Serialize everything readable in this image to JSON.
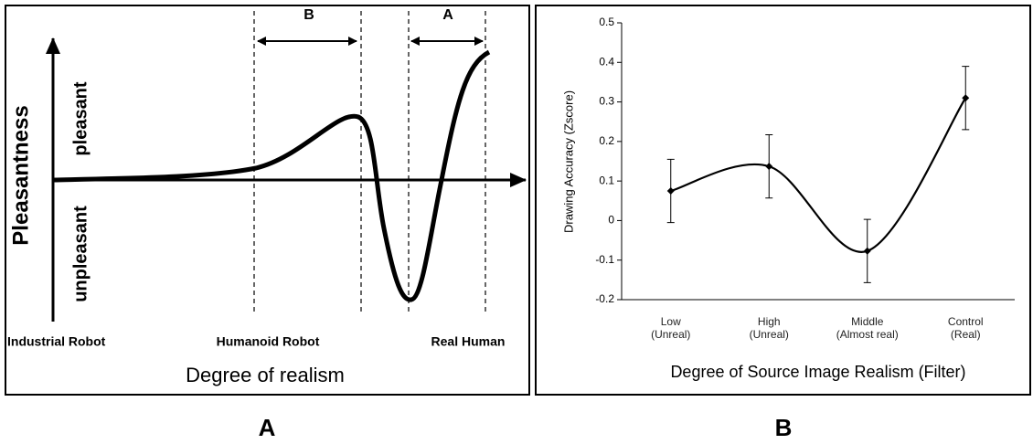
{
  "diagram": {
    "arrow_labels": [
      "B",
      "A"
    ],
    "y_title": "Pleasantness",
    "y_upper": "pleasant",
    "y_lower": "unpleasant",
    "x_labels": [
      "Industrial Robot",
      "Humanoid Robot",
      "Real Human"
    ],
    "x_title": "Degree of realism"
  },
  "chart_data": {
    "type": "line",
    "ylabel": "Drawing Accuracy (Zscore)",
    "xlabel": "Degree of Source Image Realism (Filter)",
    "categories": [
      "Low\n(Unreal)",
      "High\n(Unreal)",
      "Middle\n(Almost real)",
      "Control\n(Real)"
    ],
    "values": [
      0.075,
      0.137,
      -0.077,
      0.31
    ],
    "errors": [
      0.08,
      0.08,
      0.08,
      0.08
    ],
    "color": "#000000",
    "ylim": [
      -0.2,
      0.5
    ],
    "yticks": [
      -0.2,
      -0.1,
      0,
      0.1,
      0.2,
      0.3,
      0.4,
      0.5
    ]
  },
  "captions": [
    "A",
    "B"
  ]
}
